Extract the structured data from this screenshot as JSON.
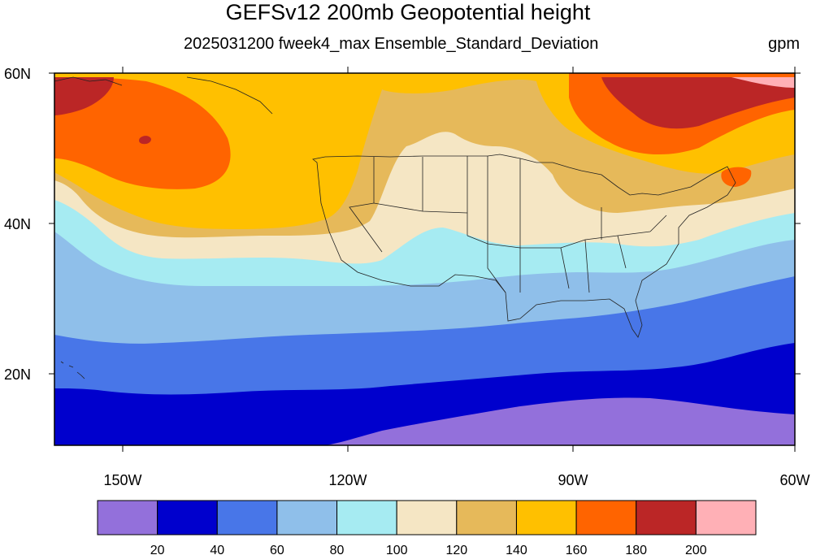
{
  "header": {
    "title": "GEFSv12 200mb Geopotential height",
    "subtitle": "2025031200 fweek4_max Ensemble_Standard_Deviation",
    "units": "gpm"
  },
  "axes": {
    "lat_labels": [
      "60N",
      "40N",
      "20N"
    ],
    "lon_labels": [
      "150W",
      "120W",
      "90W",
      "60W"
    ]
  },
  "colorbar": {
    "colors": [
      "#9370db",
      "#0000cd",
      "#4876e8",
      "#8fbfea",
      "#a6ebf2",
      "#f5e6c4",
      "#e6b95a",
      "#ffc000",
      "#ff6400",
      "#bb2626",
      "#ffb0b6"
    ],
    "labels": [
      "20",
      "40",
      "60",
      "80",
      "100",
      "120",
      "140",
      "160",
      "180",
      "200"
    ]
  },
  "map": {
    "region": "North Pacific and North America, 10N-60N, 160W-60W",
    "bands_south_to_north": [
      "#9370db",
      "#0000cd",
      "#4876e8",
      "#8fbfea",
      "#a6ebf2",
      "#f5e6c4",
      "#e6b95a",
      "#ffc000",
      "#ff6400",
      "#bb2626"
    ]
  }
}
